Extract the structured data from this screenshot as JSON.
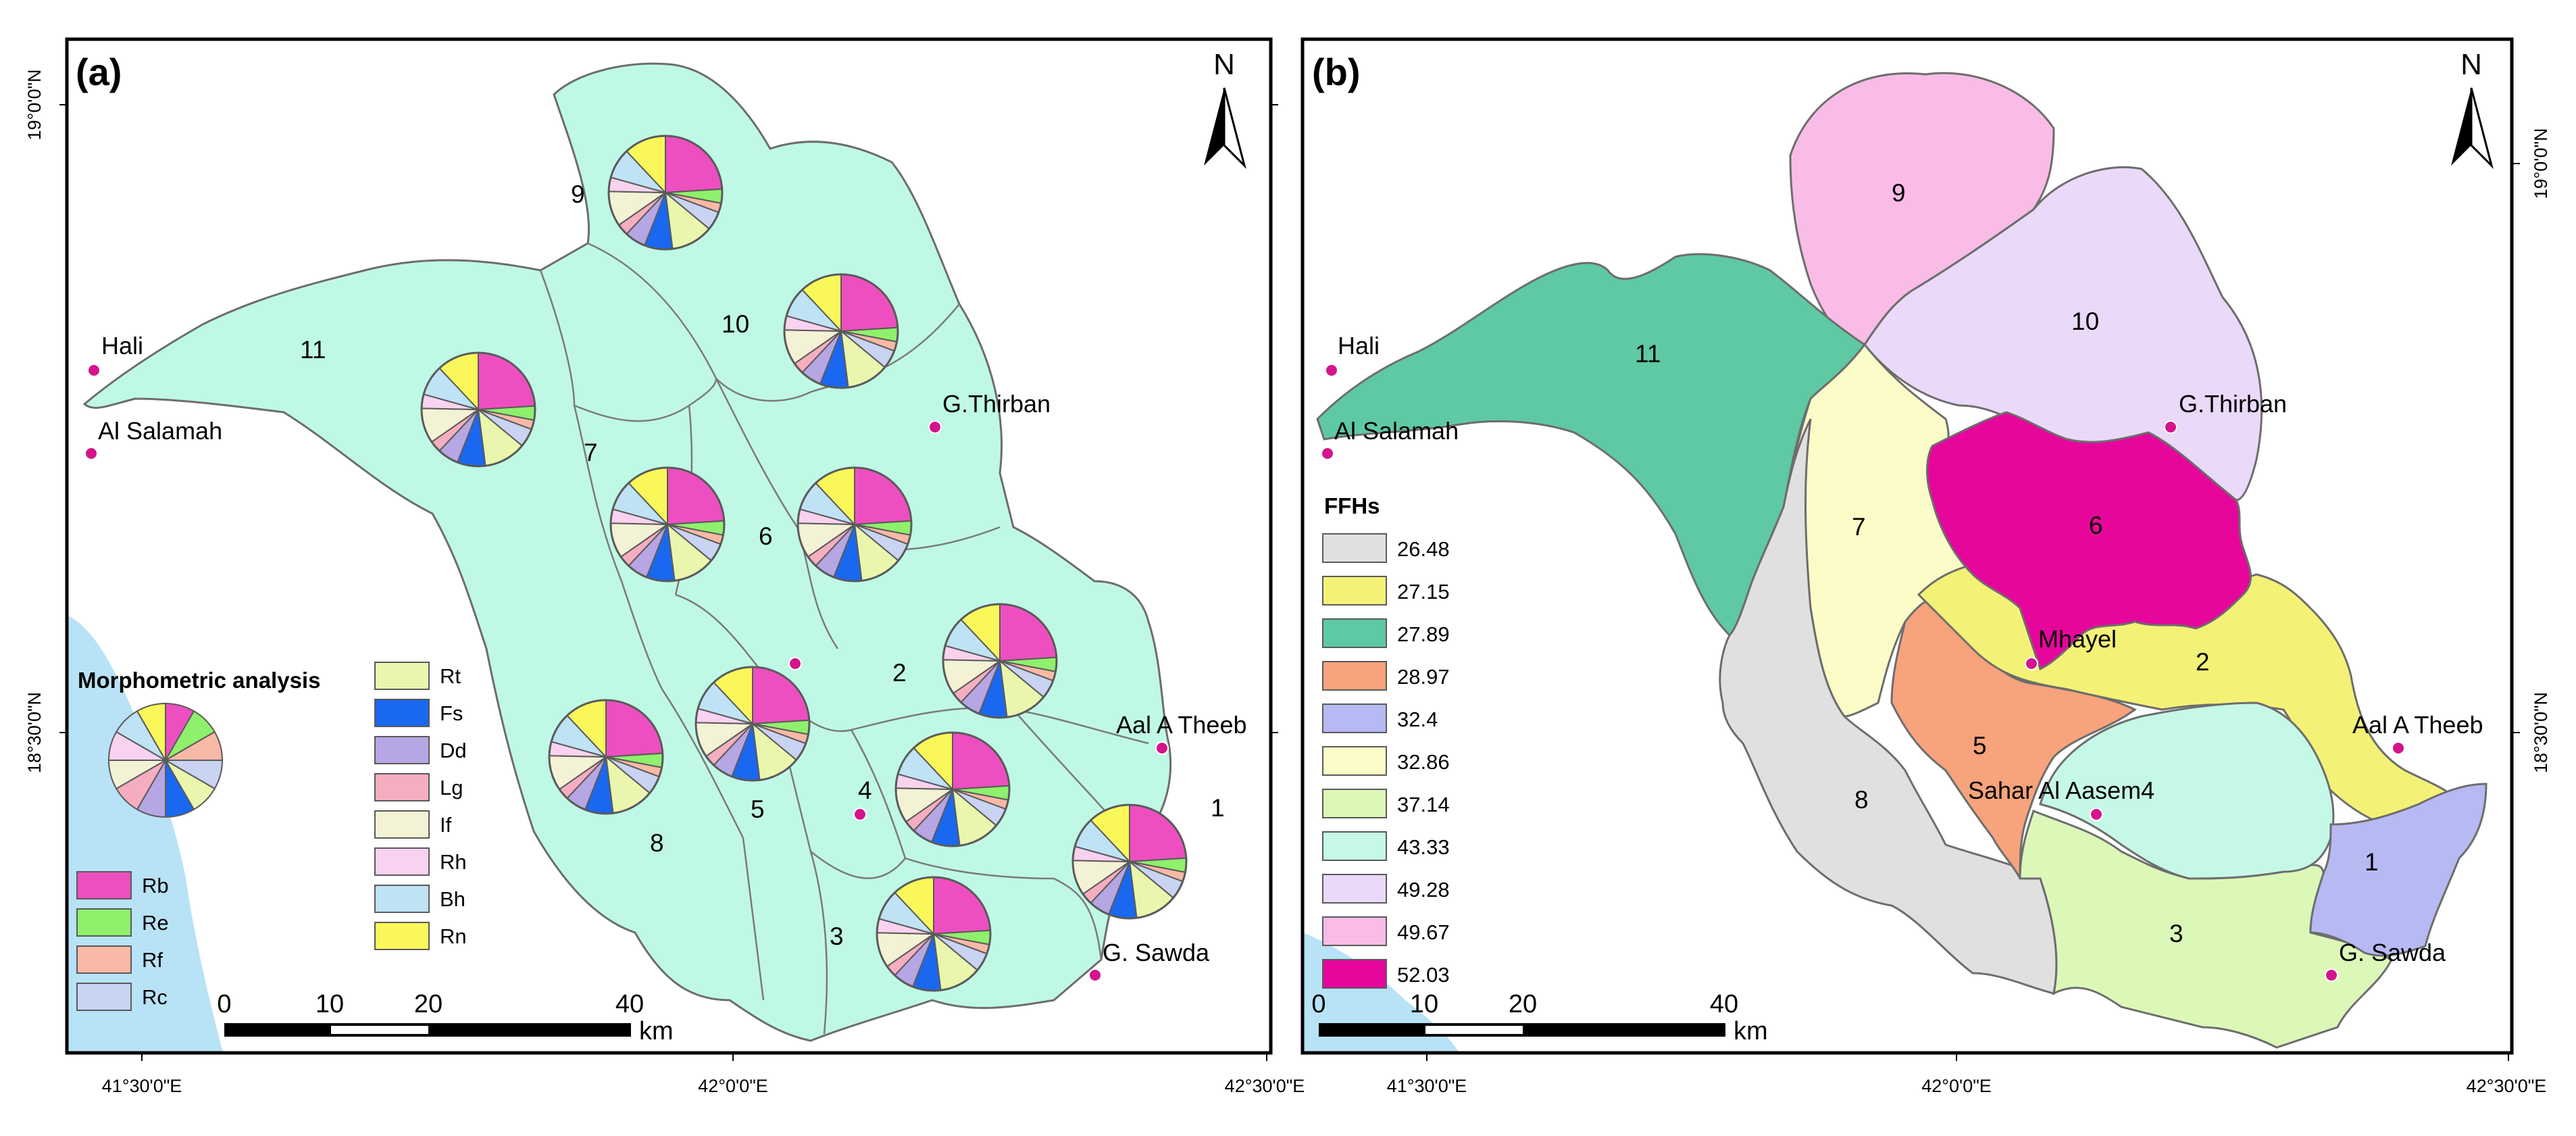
{
  "panels": [
    {
      "id": "a",
      "label": "(a)",
      "legend_title": "Morphometric analysis",
      "place_names": [
        "Hali",
        "Al Salamah",
        "G.Thirban",
        "Aal A Theeb",
        "G. Sawda"
      ],
      "basin_ids": [
        "1",
        "2",
        "3",
        "4",
        "5",
        "6",
        "7",
        "8",
        "9",
        "10",
        "11"
      ],
      "parameters": [
        {
          "name": "Rb",
          "color": "#ee4fc0"
        },
        {
          "name": "Re",
          "color": "#8ef06b"
        },
        {
          "name": "Rf",
          "color": "#f8b9a6"
        },
        {
          "name": "Rc",
          "color": "#c9d3f2"
        },
        {
          "name": "Rt",
          "color": "#eaf6ad"
        },
        {
          "name": "Fs",
          "color": "#1a67f0"
        },
        {
          "name": "Dd",
          "color": "#b6a6e3"
        },
        {
          "name": "Lg",
          "color": "#f5aec0"
        },
        {
          "name": "If",
          "color": "#f4f2d4"
        },
        {
          "name": "Rh",
          "color": "#f8d2ef"
        },
        {
          "name": "Bh",
          "color": "#bfe2f5"
        },
        {
          "name": "Rn",
          "color": "#faf75a"
        }
      ],
      "fill_color": "#bff9e6",
      "sea_color": "#b8e2f6"
    },
    {
      "id": "b",
      "label": "(b)",
      "legend_title": "FFHs",
      "place_names": [
        "Hali",
        "Al Salamah",
        "G.Thirban",
        "Mhayel",
        "Aal A Theeb",
        "Sahar Al Aasem4",
        "G. Sawda"
      ],
      "basin_ids": [
        "1",
        "2",
        "3",
        "5",
        "6",
        "7",
        "8",
        "9",
        "10",
        "11"
      ],
      "ffh_classes": [
        {
          "value": "26.48",
          "color": "#e0e0e0"
        },
        {
          "value": "27.15",
          "color": "#f4f276"
        },
        {
          "value": "27.89",
          "color": "#5fc9a3"
        },
        {
          "value": "28.97",
          "color": "#f7a37c"
        },
        {
          "value": "32.4",
          "color": "#b7b9f2"
        },
        {
          "value": "32.86",
          "color": "#fcfcc8"
        },
        {
          "value": "37.14",
          "color": "#dcf8b8"
        },
        {
          "value": "43.33",
          "color": "#c6f8e7"
        },
        {
          "value": "49.28",
          "color": "#ead9f8"
        },
        {
          "value": "49.67",
          "color": "#f8bce6"
        },
        {
          "value": "52.03",
          "color": "#e6069c"
        }
      ]
    }
  ],
  "north_label": "N",
  "axes": {
    "lon_labels": [
      "41°30'0\"E",
      "42°0'0\"E",
      "42°30'0\"E"
    ],
    "lat_labels": [
      "19°0'0\"N",
      "18°30'0\"N"
    ]
  },
  "scale_bar": {
    "ticks": [
      "0",
      "10",
      "20",
      "40"
    ],
    "unit": "km"
  }
}
